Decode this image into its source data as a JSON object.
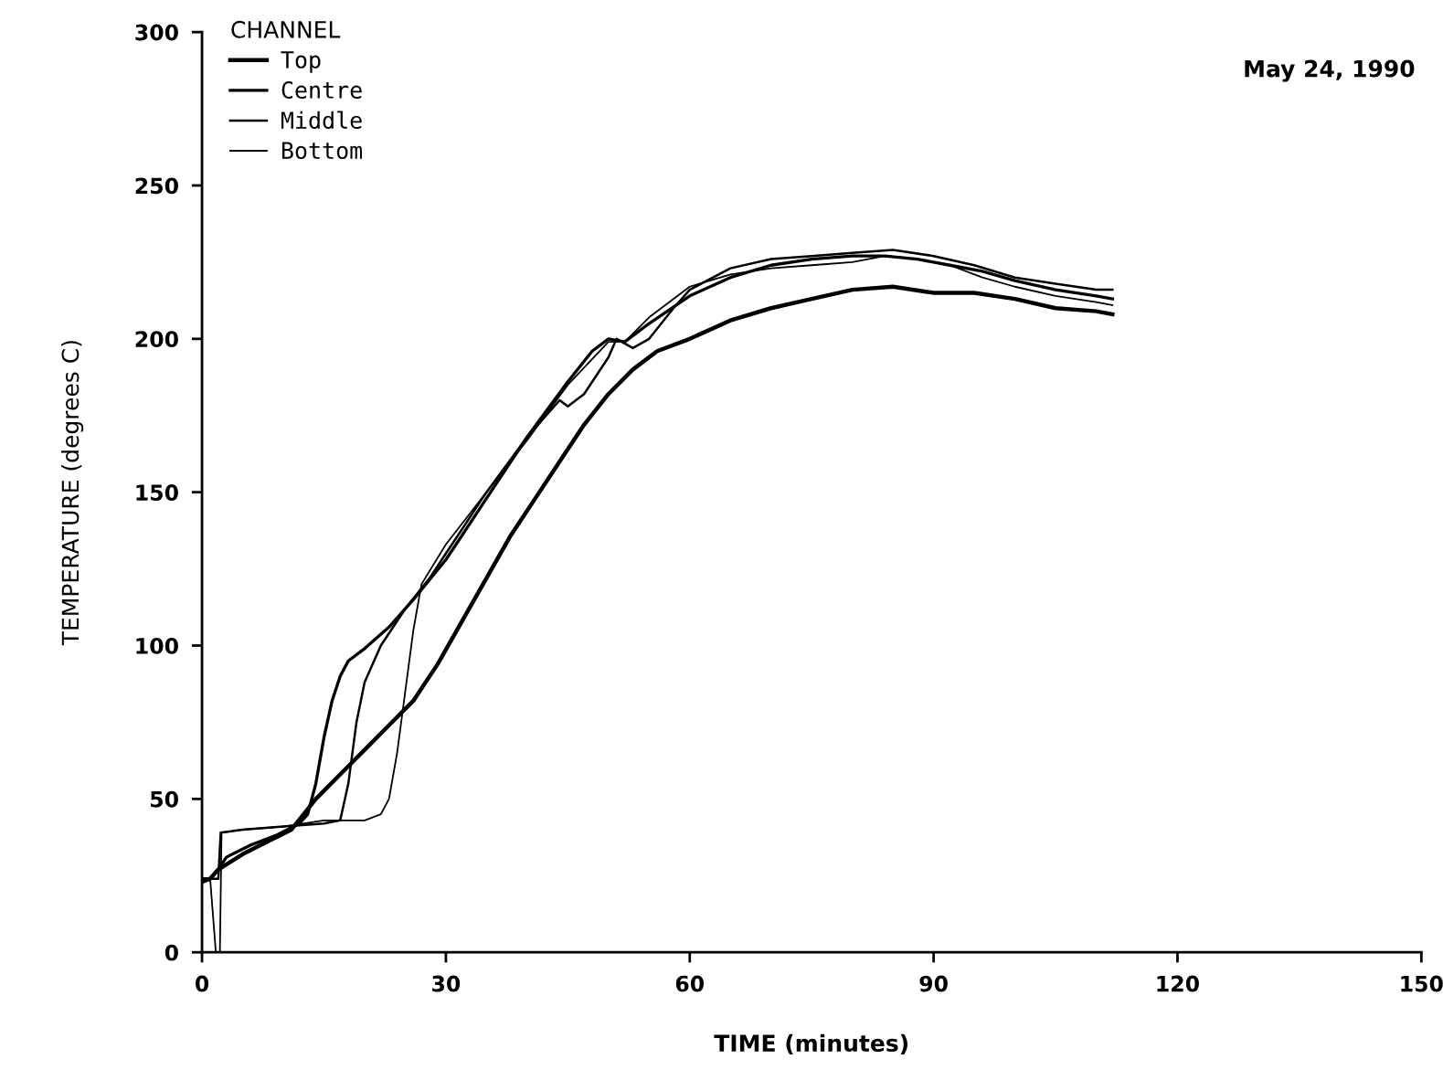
{
  "chart_data": {
    "type": "line",
    "xlabel": "TIME (minutes)",
    "ylabel": "TEMPERATURE (degrees C)",
    "legend_title": "CHANNEL",
    "annotations": [
      "May 24, 1990"
    ],
    "xlim": [
      0,
      150
    ],
    "xticks": [
      0,
      30,
      60,
      90,
      120,
      150
    ],
    "ylim": [
      0,
      300
    ],
    "yticks": [
      0,
      50,
      100,
      150,
      200,
      250,
      300
    ],
    "grid": false,
    "legend": "top left",
    "marker": "none",
    "line_style": "solid",
    "series": [
      {
        "name": "Top",
        "color": "#000000",
        "x": [
          0,
          1,
          2,
          5,
          8,
          11,
          14,
          17,
          20,
          23,
          26,
          29,
          32,
          35,
          38,
          41,
          44,
          47,
          50,
          53,
          56,
          60,
          65,
          70,
          75,
          80,
          85,
          90,
          95,
          100,
          105,
          110,
          112
        ],
        "values": [
          23,
          24,
          27,
          32,
          36,
          40,
          50,
          58,
          66,
          74,
          82,
          94,
          108,
          122,
          136,
          148,
          160,
          172,
          182,
          190,
          196,
          200,
          206,
          210,
          213,
          216,
          217,
          215,
          215,
          213,
          210,
          209,
          208
        ]
      },
      {
        "name": "Centre",
        "color": "#000000",
        "x": [
          0,
          1,
          2,
          3,
          6,
          9,
          12,
          13,
          14,
          15,
          16,
          17,
          18,
          20,
          23,
          26,
          30,
          35,
          40,
          45,
          48,
          50,
          52,
          55,
          60,
          65,
          70,
          75,
          80,
          84,
          88,
          92,
          96,
          100,
          105,
          110,
          112
        ],
        "values": [
          24,
          24,
          27,
          31,
          35,
          38,
          42,
          45,
          55,
          70,
          82,
          90,
          95,
          99,
          106,
          115,
          128,
          148,
          168,
          186,
          196,
          200,
          199,
          205,
          214,
          220,
          224,
          226,
          227,
          227,
          226,
          224,
          222,
          219,
          216,
          214,
          213
        ]
      },
      {
        "name": "Middle",
        "color": "#000000",
        "x": [
          0,
          2,
          2.3,
          5,
          10,
          15,
          17,
          18,
          19,
          20,
          22,
          25,
          28,
          30,
          35,
          40,
          44,
          45,
          47,
          50,
          51,
          53,
          55,
          58,
          60,
          65,
          70,
          75,
          80,
          85,
          90,
          95,
          100,
          105,
          110,
          112
        ],
        "values": [
          24,
          24,
          39,
          40,
          41,
          42,
          43,
          55,
          75,
          88,
          100,
          112,
          122,
          130,
          150,
          168,
          180,
          178,
          182,
          194,
          200,
          197,
          200,
          210,
          216,
          223,
          226,
          227,
          228,
          229,
          227,
          224,
          220,
          218,
          216,
          216
        ]
      },
      {
        "name": "Bottom",
        "color": "#000000",
        "x": [
          0,
          1,
          1.7,
          2.2,
          2.4,
          5,
          10,
          15,
          20,
          22,
          23,
          24,
          25,
          26,
          27,
          30,
          35,
          40,
          45,
          50,
          52,
          55,
          60,
          65,
          70,
          75,
          80,
          84,
          88,
          92,
          96,
          100,
          105,
          110,
          112
        ],
        "values": [
          24,
          24,
          0,
          0,
          39,
          40,
          41,
          43,
          43,
          45,
          50,
          65,
          85,
          105,
          120,
          133,
          150,
          167,
          185,
          199,
          199,
          207,
          217,
          221,
          223,
          224,
          225,
          227,
          226,
          224,
          220,
          217,
          214,
          212,
          211
        ]
      }
    ]
  }
}
